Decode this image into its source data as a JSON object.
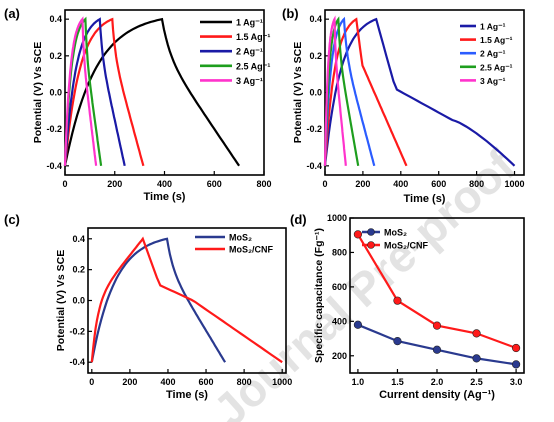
{
  "watermark": "Journal Pre-proof",
  "chart_data": [
    {
      "panel": "(a)",
      "type": "line",
      "xlabel": "Time (s)",
      "ylabel": "Potential (V) Vs SCE",
      "xlim": [
        0,
        800
      ],
      "ylim": [
        -0.45,
        0.45
      ],
      "xticks": [
        0,
        200,
        400,
        600,
        800
      ],
      "yticks": [
        -0.4,
        -0.2,
        0.0,
        0.2,
        0.4
      ],
      "legend_position": "top-right",
      "series": [
        {
          "name": "1 Ag⁻¹",
          "color": "#000000",
          "charge": 390,
          "end": 700
        },
        {
          "name": "1.5 Ag⁻¹",
          "color": "#ff1a1a",
          "charge": 190,
          "end": 315
        },
        {
          "name": "2 Ag⁻¹",
          "color": "#1a1aa6",
          "charge": 140,
          "end": 240
        },
        {
          "name": "2.5 Ag⁻¹",
          "color": "#1e9e1e",
          "charge": 82,
          "end": 145
        },
        {
          "name": "3 Ag⁻¹",
          "color": "#ff33cc",
          "charge": 70,
          "end": 125
        }
      ]
    },
    {
      "panel": "(b)",
      "type": "line",
      "xlabel": "Time (s)",
      "ylabel": "Potential (V) Vs SCE",
      "xlim": [
        0,
        1050
      ],
      "ylim": [
        -0.45,
        0.45
      ],
      "xticks": [
        0,
        200,
        400,
        600,
        800,
        1000
      ],
      "yticks": [
        -0.4,
        -0.2,
        0.0,
        0.2,
        0.4
      ],
      "legend_position": "top-right",
      "series": [
        {
          "name": "1 Ag⁻¹",
          "color": "#1a1aa6",
          "charge": 270,
          "end": 1000
        },
        {
          "name": "1.5 Ag⁻¹",
          "color": "#ff1a1a",
          "charge": 165,
          "end": 430
        },
        {
          "name": "2 Ag⁻¹",
          "color": "#2b5cff",
          "charge": 100,
          "end": 260
        },
        {
          "name": "2.5 Ag⁻¹",
          "color": "#1e9e1e",
          "charge": 70,
          "end": 175
        },
        {
          "name": "3 Ag⁻¹",
          "color": "#ff33cc",
          "charge": 50,
          "end": 110
        }
      ]
    },
    {
      "panel": "(c)",
      "type": "line",
      "xlabel": "Time (s)",
      "ylabel": "Potential (V) Vs SCE",
      "xlim": [
        -20,
        1020
      ],
      "ylim": [
        -0.47,
        0.47
      ],
      "xticks": [
        0,
        200,
        400,
        600,
        800,
        1000
      ],
      "yticks": [
        -0.4,
        -0.2,
        0.0,
        0.2,
        0.4
      ],
      "legend_position": "top-right",
      "series": [
        {
          "name": "MoS₂",
          "color": "#2a3a8f",
          "charge": 395,
          "end": 700
        },
        {
          "name": "MoS₂/CNF",
          "color": "#ff1a1a",
          "charge": 268,
          "end": 1000
        }
      ]
    },
    {
      "panel": "(d)",
      "type": "line",
      "xlabel": "Current density (Ag⁻¹)",
      "ylabel": "Specific capacitance (Fg⁻¹)",
      "xlim": [
        0.9,
        3.1
      ],
      "ylim": [
        100,
        1000
      ],
      "xticks": [
        1.0,
        1.5,
        2.0,
        2.5,
        3.0
      ],
      "yticks": [
        200,
        400,
        600,
        800,
        1000
      ],
      "legend_position": "top-right",
      "categories": [
        1.0,
        1.5,
        2.0,
        2.5,
        3.0
      ],
      "series": [
        {
          "name": "MoS₂",
          "color": "#2a3a8f",
          "values": [
            380,
            285,
            235,
            185,
            150
          ]
        },
        {
          "name": "MoS₂/CNF",
          "color": "#ff1a1a",
          "values": [
            905,
            520,
            375,
            330,
            245
          ]
        }
      ]
    }
  ]
}
